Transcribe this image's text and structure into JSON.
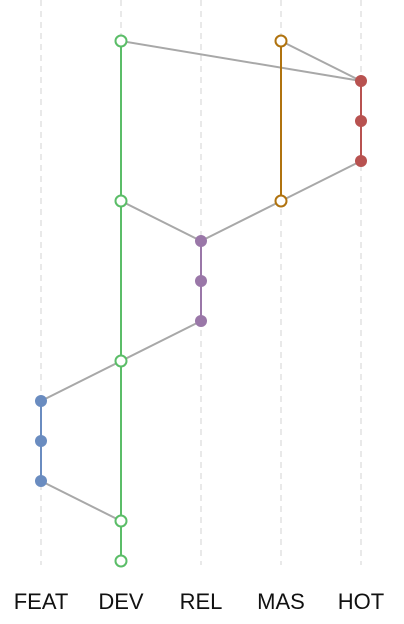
{
  "branches": [
    {
      "id": "feat",
      "label": "FEAT",
      "color": "#6a8cc0"
    },
    {
      "id": "dev",
      "label": "DEV",
      "color": "#5bbd68"
    },
    {
      "id": "rel",
      "label": "REL",
      "color": "#9a77a8"
    },
    {
      "id": "mas",
      "label": "MAS",
      "color": "#b0730f"
    },
    {
      "id": "hot",
      "label": "HOT",
      "color": "#b85250"
    }
  ],
  "commits": [
    {
      "id": "c1",
      "branch": "dev",
      "row": 0,
      "style": "open"
    },
    {
      "id": "c2",
      "branch": "mas",
      "row": 0,
      "style": "open"
    },
    {
      "id": "c3",
      "branch": "hot",
      "row": 1,
      "style": "filled"
    },
    {
      "id": "c4",
      "branch": "hot",
      "row": 2,
      "style": "filled"
    },
    {
      "id": "c5",
      "branch": "hot",
      "row": 3,
      "style": "filled"
    },
    {
      "id": "c6",
      "branch": "dev",
      "row": 4,
      "style": "open"
    },
    {
      "id": "c7",
      "branch": "mas",
      "row": 4,
      "style": "open"
    },
    {
      "id": "c8",
      "branch": "rel",
      "row": 5,
      "style": "filled"
    },
    {
      "id": "c9",
      "branch": "rel",
      "row": 6,
      "style": "filled"
    },
    {
      "id": "c10",
      "branch": "rel",
      "row": 7,
      "style": "filled"
    },
    {
      "id": "c11",
      "branch": "dev",
      "row": 8,
      "style": "open"
    },
    {
      "id": "c12",
      "branch": "feat",
      "row": 9,
      "style": "filled"
    },
    {
      "id": "c13",
      "branch": "feat",
      "row": 10,
      "style": "filled"
    },
    {
      "id": "c14",
      "branch": "feat",
      "row": 11,
      "style": "filled"
    },
    {
      "id": "c15",
      "branch": "dev",
      "row": 12,
      "style": "open"
    },
    {
      "id": "c16",
      "branch": "dev",
      "row": 13,
      "style": "open"
    }
  ],
  "branch_edges": [
    [
      "c1",
      "c6"
    ],
    [
      "c6",
      "c11"
    ],
    [
      "c11",
      "c15"
    ],
    [
      "c15",
      "c16"
    ],
    [
      "c2",
      "c7"
    ],
    [
      "c3",
      "c4"
    ],
    [
      "c4",
      "c5"
    ],
    [
      "c8",
      "c9"
    ],
    [
      "c9",
      "c10"
    ],
    [
      "c12",
      "c13"
    ],
    [
      "c13",
      "c14"
    ]
  ],
  "merge_edges": [
    [
      "c1",
      "c3"
    ],
    [
      "c2",
      "c3"
    ],
    [
      "c5",
      "c7"
    ],
    [
      "c6",
      "c8"
    ],
    [
      "c7",
      "c8"
    ],
    [
      "c10",
      "c11"
    ],
    [
      "c11",
      "c12"
    ],
    [
      "c14",
      "c15"
    ]
  ]
}
